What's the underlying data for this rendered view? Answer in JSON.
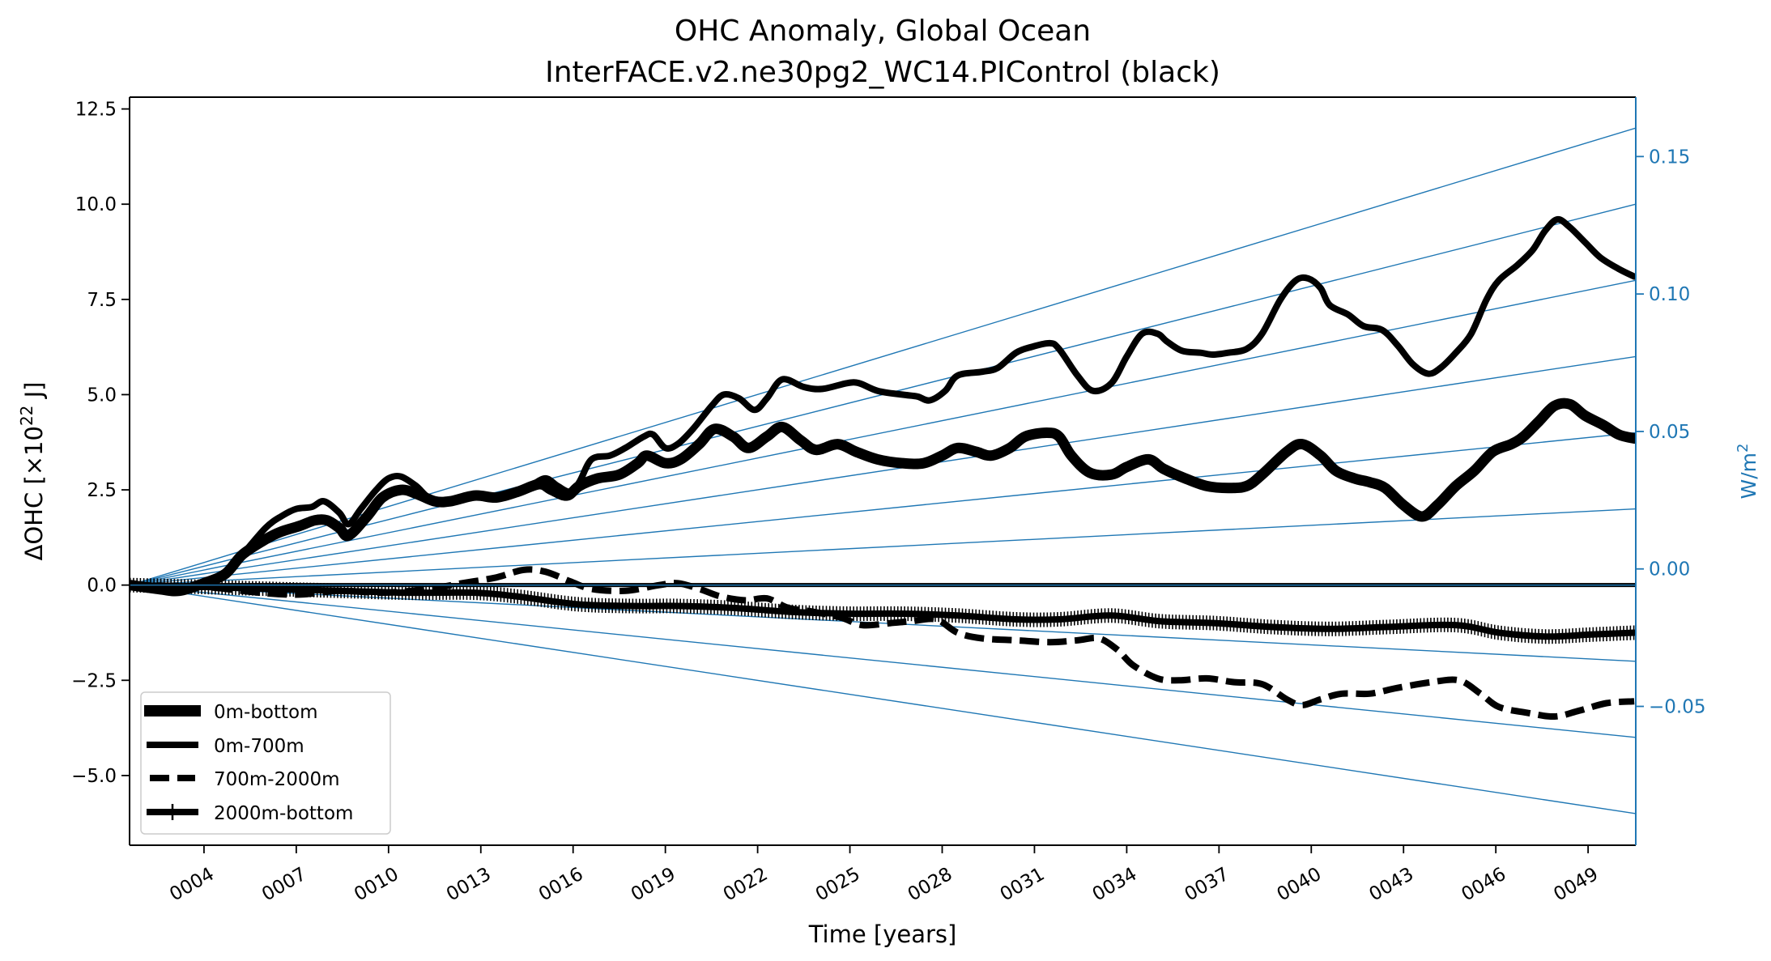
{
  "chart_data": {
    "type": "line",
    "title": "OHC Anomaly, Global Ocean",
    "subtitle": "InterFACE.v2.ne30pg2_WC14.PIControl (black)",
    "xlabel": "Time [years]",
    "ylabel": "ΔOHC [×10²² J]",
    "ylabel_parts": {
      "prefix": "ΔOHC [×10",
      "sup": "22",
      "suffix": " J]"
    },
    "y2label": "W/m²",
    "y2label_parts": {
      "prefix": "W/m",
      "sup": "2"
    },
    "xlim": [
      1.58,
      50.55
    ],
    "ylim": [
      -6.83,
      12.81
    ],
    "y2lim": [
      -0.1005,
      0.1716
    ],
    "grid": false,
    "legend_position": "lower-left",
    "x_ticks": [
      4,
      7,
      10,
      13,
      16,
      19,
      22,
      25,
      28,
      31,
      34,
      37,
      40,
      43,
      46,
      49
    ],
    "x_tick_labels": [
      "0004",
      "0007",
      "0010",
      "0013",
      "0016",
      "0019",
      "0022",
      "0025",
      "0028",
      "0031",
      "0034",
      "0037",
      "0040",
      "0043",
      "0046",
      "0049"
    ],
    "y_ticks": [
      -5.0,
      -2.5,
      0.0,
      2.5,
      5.0,
      7.5,
      10.0,
      12.5
    ],
    "y_tick_labels": [
      "−5.0",
      "−2.5",
      "0.0",
      "2.5",
      "5.0",
      "7.5",
      "10.0",
      "12.5"
    ],
    "y2_ticks": [
      -0.05,
      0.0,
      0.05,
      0.1,
      0.15
    ],
    "y2_tick_labels": [
      "−0.05",
      "0.00",
      "0.05",
      "0.10",
      "0.15"
    ],
    "colors": {
      "series": "#000000",
      "reference": "#1f77b4"
    },
    "reference_lines": {
      "description": "constant heating-rate lines from origin, W/m²",
      "rates_wm2": [
        0.15,
        0.125,
        0.1,
        0.075,
        0.05,
        0.025,
        0.0,
        -0.025,
        -0.05,
        -0.075
      ],
      "end_values": [
        12,
        10,
        8,
        6,
        4,
        2,
        0,
        -2,
        -4,
        -6
      ]
    },
    "series": [
      {
        "name": "0m-bottom",
        "style": "solid-thick",
        "x": [
          1.6,
          2.5,
          3.2,
          4,
          4.7,
          5.25,
          6,
          6.5,
          7.1,
          7.6,
          8,
          8.4,
          8.7,
          9.3,
          9.8,
          10.4,
          10.9,
          11.5,
          12,
          12.8,
          13.5,
          14.2,
          14.9,
          15.3,
          15.8,
          16.2,
          16.8,
          17.5,
          18.1,
          18.4,
          19,
          19.5,
          20.1,
          20.6,
          21.2,
          21.7,
          22.3,
          22.8,
          23.4,
          23.9,
          24.6,
          25.2,
          25.9,
          26.7,
          27.4,
          28,
          28.5,
          29.1,
          29.6,
          30.2,
          30.7,
          31.4,
          31.8,
          32.2,
          32.8,
          33.5,
          34,
          34.7,
          35.2,
          35.9,
          36.6,
          37.3,
          37.9,
          38.4,
          39.2,
          39.7,
          40.3,
          40.8,
          41.4,
          41.9,
          42.4,
          43,
          43.6,
          44.1,
          44.7,
          45.3,
          45.9,
          46.5,
          46.9,
          47.4,
          47.9,
          48.4,
          48.9,
          49.5,
          50,
          50.5
        ],
        "values": [
          0.0,
          -0.1,
          -0.15,
          0.05,
          0.3,
          0.8,
          1.2,
          1.4,
          1.55,
          1.7,
          1.7,
          1.5,
          1.3,
          1.8,
          2.3,
          2.5,
          2.4,
          2.2,
          2.2,
          2.35,
          2.3,
          2.45,
          2.65,
          2.5,
          2.35,
          2.6,
          2.8,
          2.9,
          3.2,
          3.4,
          3.2,
          3.3,
          3.7,
          4.1,
          3.9,
          3.6,
          3.9,
          4.15,
          3.8,
          3.55,
          3.7,
          3.5,
          3.3,
          3.2,
          3.2,
          3.4,
          3.6,
          3.5,
          3.4,
          3.6,
          3.9,
          4.0,
          3.9,
          3.4,
          2.95,
          2.9,
          3.1,
          3.3,
          3.05,
          2.8,
          2.6,
          2.55,
          2.6,
          2.9,
          3.5,
          3.7,
          3.4,
          3.0,
          2.8,
          2.7,
          2.55,
          2.1,
          1.8,
          2.1,
          2.6,
          3.0,
          3.5,
          3.7,
          3.9,
          4.3,
          4.7,
          4.75,
          4.45,
          4.2,
          3.95,
          3.85
        ]
      },
      {
        "name": "0m-700m",
        "style": "solid",
        "x": [
          1.6,
          2.5,
          3.2,
          4,
          4.7,
          5.25,
          6,
          6.5,
          7,
          7.5,
          7.9,
          8.4,
          8.7,
          9.1,
          9.6,
          10,
          10.4,
          10.9,
          11.3,
          11.8,
          12.4,
          12.9,
          13.5,
          14,
          14.6,
          15.1,
          15.5,
          15.9,
          16.2,
          16.6,
          17.2,
          17.7,
          18.3,
          18.6,
          19,
          19.4,
          19.9,
          20.5,
          20.9,
          21.4,
          21.9,
          22.3,
          22.8,
          23.5,
          24.1,
          24.9,
          25.3,
          25.9,
          26.7,
          27.2,
          27.6,
          28.1,
          28.5,
          29.3,
          29.8,
          30.4,
          30.9,
          31.5,
          31.8,
          32.4,
          32.9,
          33.5,
          34,
          34.5,
          35,
          35.3,
          35.8,
          36.4,
          36.8,
          37.3,
          37.9,
          38.4,
          39,
          39.5,
          39.9,
          40.3,
          40.6,
          41.2,
          41.7,
          42.3,
          42.8,
          43.3,
          43.8,
          44.2,
          44.7,
          45.2,
          45.7,
          46.1,
          46.7,
          47.2,
          47.6,
          48,
          48.4,
          48.9,
          49.4,
          50,
          50.5
        ],
        "values": [
          0.0,
          -0.05,
          -0.1,
          0.0,
          0.3,
          0.8,
          1.5,
          1.8,
          2.0,
          2.05,
          2.2,
          1.9,
          1.6,
          2.0,
          2.5,
          2.8,
          2.85,
          2.6,
          2.3,
          2.2,
          2.3,
          2.4,
          2.3,
          2.4,
          2.6,
          2.8,
          2.6,
          2.45,
          2.7,
          3.3,
          3.4,
          3.6,
          3.9,
          3.95,
          3.6,
          3.7,
          4.1,
          4.7,
          5.0,
          4.9,
          4.6,
          4.9,
          5.4,
          5.2,
          5.15,
          5.3,
          5.3,
          5.1,
          5.0,
          4.95,
          4.85,
          5.1,
          5.5,
          5.6,
          5.7,
          6.1,
          6.25,
          6.35,
          6.2,
          5.5,
          5.1,
          5.3,
          6.0,
          6.6,
          6.6,
          6.4,
          6.15,
          6.1,
          6.05,
          6.1,
          6.2,
          6.6,
          7.5,
          8.0,
          8.05,
          7.8,
          7.35,
          7.1,
          6.8,
          6.7,
          6.3,
          5.8,
          5.55,
          5.7,
          6.1,
          6.6,
          7.5,
          8.0,
          8.4,
          8.8,
          9.3,
          9.6,
          9.4,
          9.0,
          8.6,
          8.3,
          8.1
        ]
      },
      {
        "name": "700m-2000m",
        "style": "dashed",
        "x": [
          1.6,
          4,
          5.8,
          7.1,
          8.4,
          9.8,
          11.3,
          12.4,
          13.5,
          14.4,
          15.1,
          15.9,
          16.6,
          17.7,
          18.8,
          19.4,
          20.1,
          20.8,
          21.6,
          22.3,
          23,
          23.8,
          24.7,
          25.4,
          26.3,
          27,
          27.8,
          28.5,
          29.3,
          30.4,
          31.5,
          32.4,
          33.1,
          33.7,
          34.2,
          35,
          35.7,
          36.6,
          37.5,
          38.4,
          39.2,
          39.7,
          40.3,
          41,
          41.9,
          42.8,
          43.9,
          44.8,
          45.5,
          46.1,
          47,
          47.9,
          48.7,
          49.6,
          50.5
        ],
        "values": [
          0.0,
          -0.05,
          -0.2,
          -0.25,
          -0.15,
          -0.2,
          -0.1,
          0.05,
          0.2,
          0.4,
          0.35,
          0.1,
          -0.1,
          -0.15,
          0.0,
          0.05,
          -0.1,
          -0.3,
          -0.4,
          -0.35,
          -0.6,
          -0.7,
          -0.85,
          -1.05,
          -1.0,
          -0.95,
          -0.9,
          -1.25,
          -1.4,
          -1.45,
          -1.5,
          -1.45,
          -1.4,
          -1.7,
          -2.1,
          -2.45,
          -2.5,
          -2.45,
          -2.55,
          -2.6,
          -3.0,
          -3.15,
          -3.0,
          -2.85,
          -2.85,
          -2.7,
          -2.55,
          -2.5,
          -2.85,
          -3.2,
          -3.35,
          -3.45,
          -3.3,
          -3.1,
          -3.05
        ]
      },
      {
        "name": "2000m-bottom",
        "style": "solid-with-markers",
        "x": [
          1.6,
          4,
          6.2,
          8.4,
          10.6,
          12.8,
          14.2,
          16.1,
          17.9,
          19.4,
          21.2,
          23,
          24.9,
          26.7,
          28.5,
          30.4,
          31.8,
          33.5,
          35.1,
          36.9,
          38.7,
          40.6,
          42.5,
          44.7,
          46.1,
          47.6,
          49.1,
          50.5
        ],
        "values": [
          0.0,
          -0.05,
          -0.1,
          -0.15,
          -0.2,
          -0.2,
          -0.3,
          -0.5,
          -0.55,
          -0.55,
          -0.6,
          -0.7,
          -0.75,
          -0.75,
          -0.8,
          -0.9,
          -0.9,
          -0.8,
          -0.95,
          -1.0,
          -1.1,
          -1.15,
          -1.1,
          -1.05,
          -1.25,
          -1.35,
          -1.3,
          -1.25
        ]
      }
    ]
  }
}
